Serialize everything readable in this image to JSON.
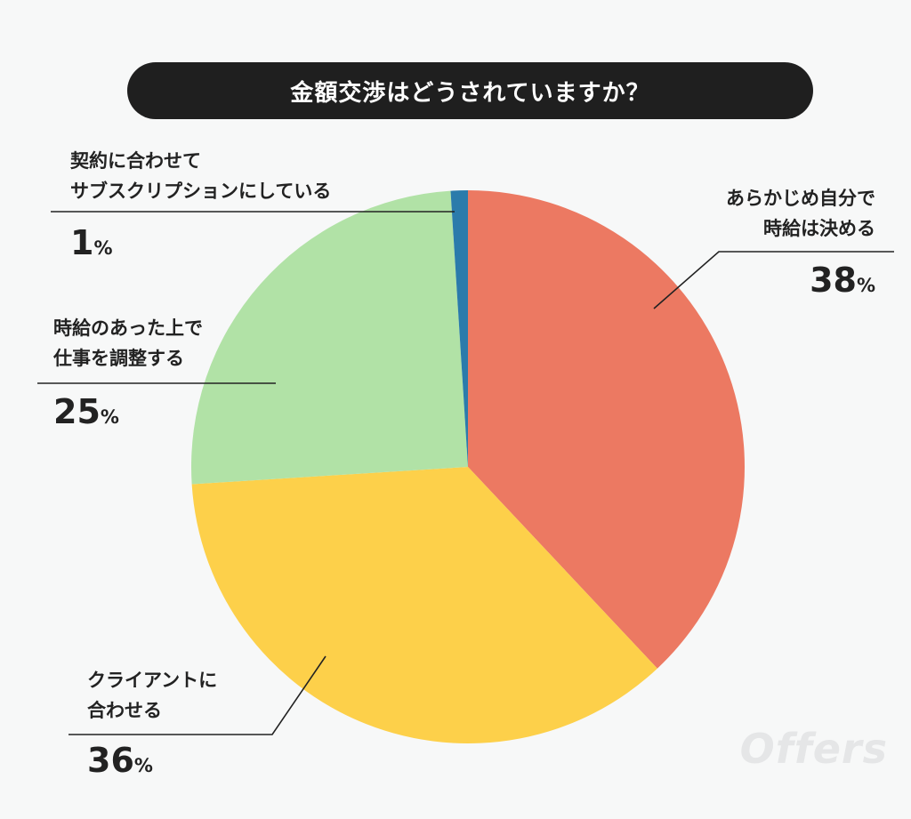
{
  "chart_data": {
    "type": "pie",
    "title": "金額交渉はどうされていますか？",
    "unit": "%",
    "slices": [
      {
        "label_lines": [
          "あらかじめ自分で",
          "時給は決める"
        ],
        "value": 38,
        "color": "#ec7962"
      },
      {
        "label_lines": [
          "クライアントに",
          "合わせる"
        ],
        "value": 36,
        "color": "#fdd04a"
      },
      {
        "label_lines": [
          "時給のあった上で",
          "仕事を調整する"
        ],
        "value": 25,
        "color": "#b1e2a6"
      },
      {
        "label_lines": [
          "契約に合わせて",
          "サブスクリプションにしている"
        ],
        "value": 1,
        "color": "#2b7bab"
      }
    ],
    "start_angle": "12 o'clock",
    "direction": "clockwise",
    "legend": "none"
  },
  "watermark": "Offers"
}
